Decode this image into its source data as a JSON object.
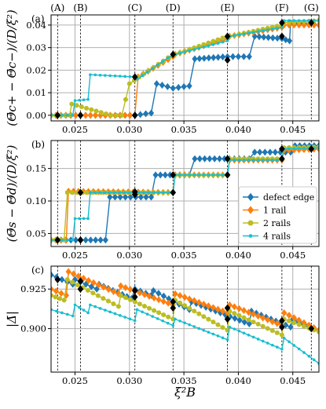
{
  "chart_data": {
    "type": "line",
    "x_label": "ξ²B",
    "x_range": [
      0.0228,
      0.0474
    ],
    "x_ticks": [
      "0.025",
      "0.030",
      "0.035",
      "0.040",
      "0.045"
    ],
    "x_tick_values": [
      0.025,
      0.03,
      0.035,
      0.04,
      0.045
    ],
    "transitions": [
      {
        "label": "(A)",
        "x": 0.0234
      },
      {
        "label": "(B)",
        "x": 0.0255
      },
      {
        "label": "(C)",
        "x": 0.0305
      },
      {
        "label": "(D)",
        "x": 0.034
      },
      {
        "label": "(E)",
        "x": 0.039
      },
      {
        "label": "(F)",
        "x": 0.044
      },
      {
        "label": "(G)",
        "x": 0.0467
      }
    ],
    "legend": {
      "placement": "right, inside panel (b)",
      "entries": [
        "defect edge",
        "1 rail",
        "2 rails",
        "4 rails"
      ]
    },
    "series_colors": {
      "defect edge": "#1f77b4",
      "1 rail": "#ff7f0e",
      "2 rails": "#bcbd22",
      "4 rails": "#17becf"
    },
    "panels": [
      {
        "id": "a",
        "label": "(a)",
        "ylabel": "(Θ̄c+ − Θ̄c−)/(D/ξ²)",
        "ylim": [
          -0.0025,
          0.0445
        ],
        "y_ticks": [
          "0.00",
          "0.01",
          "0.02",
          "0.03",
          "0.04"
        ],
        "y_tick_values": [
          0,
          0.01,
          0.02,
          0.03,
          0.04
        ],
        "series": [
          {
            "name": "defect edge",
            "x": [
              0.0228,
              0.0305,
              0.032,
              0.0325,
              0.034,
              0.0355,
              0.036,
              0.039,
              0.041,
              0.0415,
              0.044,
              0.0447,
              0.0448,
              0.0474
            ],
            "y": [
              0.0,
              0.0,
              0.001,
              0.014,
              0.012,
              0.013,
              0.025,
              0.026,
              0.026,
              0.035,
              0.034,
              0.033,
              0.041,
              0.04
            ]
          },
          {
            "name": "1 rail",
            "x": [
              0.0228,
              0.0305,
              0.0308,
              0.034,
              0.0342,
              0.039,
              0.0392,
              0.044,
              0.0442,
              0.0474
            ],
            "y": [
              0.0,
              0.0,
              0.017,
              0.026,
              0.027,
              0.034,
              0.035,
              0.039,
              0.04,
              0.04
            ]
          },
          {
            "name": "2 rails",
            "x": [
              0.0228,
              0.0245,
              0.0247,
              0.0283,
              0.0293,
              0.03,
              0.034,
              0.0342,
              0.039,
              0.0392,
              0.044,
              0.0442,
              0.0474
            ],
            "y": [
              0.0,
              0.0,
              0.005,
              0.0,
              0.0,
              0.014,
              0.027,
              0.027,
              0.035,
              0.035,
              0.04,
              0.041,
              0.042
            ]
          },
          {
            "name": "4 rails",
            "x": [
              0.0228,
              0.0248,
              0.025,
              0.0262,
              0.0264,
              0.0305,
              0.0307,
              0.034,
              0.0342,
              0.039,
              0.0392,
              0.044,
              0.0442,
              0.0474
            ],
            "y": [
              0.0,
              0.0,
              0.0065,
              0.007,
              0.018,
              0.017,
              0.016,
              0.027,
              0.027,
              0.033,
              0.035,
              0.039,
              0.042,
              0.042
            ]
          }
        ],
        "markers": [
          {
            "x": 0.0234,
            "y": 0.0
          },
          {
            "x": 0.0255,
            "y": 0.0
          },
          {
            "x": 0.0305,
            "y": 0.0
          },
          {
            "x": 0.0305,
            "y": 0.017
          },
          {
            "x": 0.034,
            "y": 0.027
          },
          {
            "x": 0.039,
            "y": 0.0245
          },
          {
            "x": 0.039,
            "y": 0.035
          },
          {
            "x": 0.044,
            "y": 0.035
          },
          {
            "x": 0.044,
            "y": 0.041
          },
          {
            "x": 0.0467,
            "y": 0.041
          }
        ]
      },
      {
        "id": "b",
        "label": "(b)",
        "ylabel": "(Θ̄s − Θ̄d)/(D/ξ²)",
        "ylim": [
          0.03,
          0.193
        ],
        "y_ticks": [
          "0.05",
          "0.10",
          "0.15"
        ],
        "y_tick_values": [
          0.05,
          0.1,
          0.15
        ],
        "series": [
          {
            "name": "defect edge",
            "x": [
              0.0228,
              0.0278,
              0.0282,
              0.032,
              0.0324,
              0.0355,
              0.036,
              0.041,
              0.0415,
              0.0448,
              0.0452,
              0.0474
            ],
            "y": [
              0.04,
              0.04,
              0.106,
              0.106,
              0.14,
              0.14,
              0.165,
              0.165,
              0.175,
              0.175,
              0.185,
              0.185
            ]
          },
          {
            "name": "1 rail",
            "x": [
              0.0228,
              0.0242,
              0.0244,
              0.034,
              0.0342,
              0.039,
              0.0392,
              0.044,
              0.0442,
              0.0474
            ],
            "y": [
              0.04,
              0.04,
              0.115,
              0.113,
              0.14,
              0.14,
              0.163,
              0.163,
              0.178,
              0.18
            ]
          },
          {
            "name": "2 rails",
            "x": [
              0.0228,
              0.024,
              0.0243,
              0.034,
              0.0342,
              0.039,
              0.0392,
              0.044,
              0.0442,
              0.0474
            ],
            "y": [
              0.04,
              0.04,
              0.113,
              0.113,
              0.14,
              0.14,
              0.165,
              0.165,
              0.182,
              0.183
            ]
          },
          {
            "name": "4 rails",
            "x": [
              0.0228,
              0.0248,
              0.025,
              0.0262,
              0.0264,
              0.034,
              0.0342,
              0.039,
              0.0392,
              0.044,
              0.0442,
              0.0474
            ],
            "y": [
              0.04,
              0.04,
              0.073,
              0.073,
              0.113,
              0.113,
              0.14,
              0.14,
              0.163,
              0.163,
              0.18,
              0.182
            ]
          }
        ],
        "markers": [
          {
            "x": 0.0234,
            "y": 0.04
          },
          {
            "x": 0.0255,
            "y": 0.04
          },
          {
            "x": 0.0255,
            "y": 0.113
          },
          {
            "x": 0.0305,
            "y": 0.11
          },
          {
            "x": 0.0305,
            "y": 0.114
          },
          {
            "x": 0.034,
            "y": 0.113
          },
          {
            "x": 0.034,
            "y": 0.14
          },
          {
            "x": 0.039,
            "y": 0.14
          },
          {
            "x": 0.039,
            "y": 0.165
          },
          {
            "x": 0.044,
            "y": 0.165
          },
          {
            "x": 0.044,
            "y": 0.18
          },
          {
            "x": 0.0467,
            "y": 0.18
          }
        ]
      },
      {
        "id": "c",
        "label": "(c)",
        "ylabel": "|Δ̄|",
        "ylim": [
          0.8725,
          0.9395
        ],
        "y_ticks": [
          "0.900",
          "0.925"
        ],
        "y_tick_values": [
          0.9,
          0.925
        ],
        "series": [
          {
            "name": "defect edge",
            "x": [
              0.0228,
              0.0248,
              0.025,
              0.027,
              0.0272,
              0.0302,
              0.0305,
              0.032,
              0.0322,
              0.0355,
              0.0357,
              0.041,
              0.0412,
              0.0448,
              0.045,
              0.0474
            ],
            "y": [
              0.934,
              0.928,
              0.931,
              0.925,
              0.928,
              0.919,
              0.925,
              0.921,
              0.924,
              0.912,
              0.917,
              0.903,
              0.911,
              0.901,
              0.906,
              0.899
            ]
          },
          {
            "name": "1 rail",
            "x": [
              0.0228,
              0.0242,
              0.0244,
              0.029,
              0.0292,
              0.034,
              0.0342,
              0.039,
              0.0392,
              0.044,
              0.0442,
              0.0474
            ],
            "y": [
              0.925,
              0.921,
              0.936,
              0.922,
              0.927,
              0.915,
              0.922,
              0.91,
              0.915,
              0.902,
              0.91,
              0.899
            ]
          },
          {
            "name": "2 rails",
            "x": [
              0.0228,
              0.024,
              0.0243,
              0.029,
              0.0292,
              0.034,
              0.0342,
              0.039,
              0.0392,
              0.044,
              0.0442,
              0.0474
            ],
            "y": [
              0.921,
              0.918,
              0.931,
              0.914,
              0.921,
              0.906,
              0.918,
              0.899,
              0.911,
              0.896,
              0.906,
              0.898
            ]
          },
          {
            "name": "4 rails",
            "x": [
              0.0228,
              0.0248,
              0.025,
              0.0262,
              0.0264,
              0.0305,
              0.0307,
              0.034,
              0.0342,
              0.039,
              0.0392,
              0.044,
              0.0442,
              0.0474
            ],
            "y": [
              0.912,
              0.908,
              0.915,
              0.91,
              0.915,
              0.905,
              0.912,
              0.902,
              0.906,
              0.893,
              0.901,
              0.887,
              0.894,
              0.878
            ]
          }
        ],
        "markers": [
          {
            "x": 0.0234,
            "y": 0.931
          },
          {
            "x": 0.0255,
            "y": 0.93
          },
          {
            "x": 0.0255,
            "y": 0.925
          },
          {
            "x": 0.0305,
            "y": 0.92
          },
          {
            "x": 0.0305,
            "y": 0.924
          },
          {
            "x": 0.034,
            "y": 0.917
          },
          {
            "x": 0.034,
            "y": 0.913
          },
          {
            "x": 0.039,
            "y": 0.913
          },
          {
            "x": 0.039,
            "y": 0.906
          },
          {
            "x": 0.044,
            "y": 0.905
          },
          {
            "x": 0.044,
            "y": 0.901
          },
          {
            "x": 0.0467,
            "y": 0.9
          }
        ]
      }
    ]
  }
}
